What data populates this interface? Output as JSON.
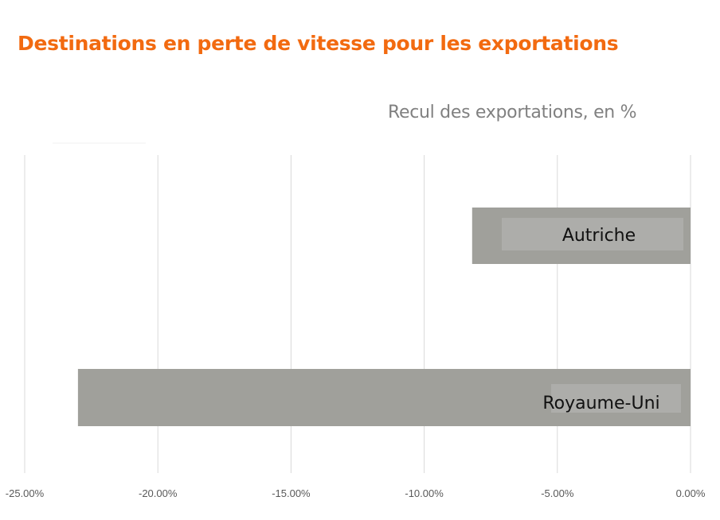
{
  "chart_data": {
    "type": "bar",
    "orientation": "horizontal",
    "title": "Destinations en perte de vitesse pour les exportations",
    "subtitle": "Recul des exportations, en %",
    "categories": [
      "Autriche",
      "Royaume-Uni"
    ],
    "values": [
      -8.2,
      -23.0
    ],
    "unit": "%",
    "xlim": [
      -25,
      0
    ],
    "xticks": [
      -25,
      -20,
      -15,
      -10,
      -5,
      0
    ],
    "xtick_labels": [
      "-25.00%",
      "-20.00%",
      "-15.00%",
      "-10.00%",
      "-5.00%",
      "0.00%"
    ],
    "grid": true,
    "colors": {
      "bar": "#a0a09b",
      "label_box": "#adadaa",
      "title": "#f26a10",
      "subtitle": "#808080",
      "grid": "#d9d9d9",
      "tick_text": "#595959"
    }
  }
}
